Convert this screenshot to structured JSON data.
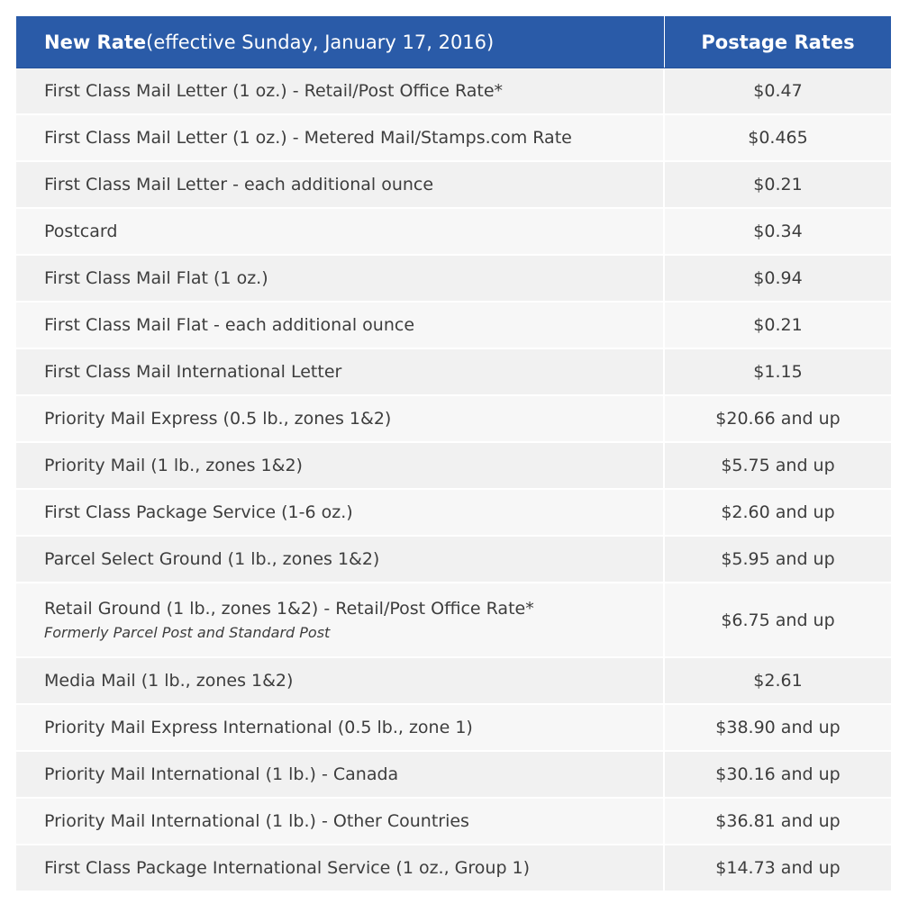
{
  "table": {
    "header": {
      "service_bold": "New Rate",
      "service_normal": " (effective Sunday, January 17, 2016)",
      "rate": "Postage Rates"
    },
    "rows": [
      {
        "service": "First Class Mail Letter (1 oz.) - Retail/Post Office Rate*",
        "rate": "$0.47"
      },
      {
        "service": "First Class Mail Letter (1 oz.) - Metered Mail/Stamps.com Rate",
        "rate": "$0.465"
      },
      {
        "service": "First Class Mail Letter - each additional ounce",
        "rate": "$0.21"
      },
      {
        "service": "Postcard",
        "rate": "$0.34"
      },
      {
        "service": "First Class Mail Flat (1 oz.)",
        "rate": "$0.94"
      },
      {
        "service": "First Class Mail Flat - each additional ounce",
        "rate": "$0.21"
      },
      {
        "service": "First Class Mail International Letter",
        "rate": "$1.15"
      },
      {
        "service": "Priority Mail Express (0.5 lb., zones 1&2)",
        "rate": "$20.66 and up"
      },
      {
        "service": "Priority Mail (1 lb., zones 1&2)",
        "rate": "$5.75 and up"
      },
      {
        "service": "First Class Package Service (1-6 oz.)",
        "rate": "$2.60 and up"
      },
      {
        "service": "Parcel Select Ground (1 lb., zones 1&2)",
        "rate": "$5.95 and up"
      },
      {
        "service": "Retail Ground (1 lb., zones 1&2) - Retail/Post Office Rate*",
        "note": "Formerly Parcel Post and Standard Post",
        "rate": "$6.75 and up"
      },
      {
        "service": "Media Mail (1 lb., zones 1&2)",
        "rate": "$2.61"
      },
      {
        "service": "Priority Mail Express International (0.5 lb., zone 1)",
        "rate": "$38.90 and up"
      },
      {
        "service": "Priority Mail International (1 lb.) - Canada",
        "rate": "$30.16 and up"
      },
      {
        "service": "Priority Mail International (1 lb.) - Other Countries",
        "rate": "$36.81 and up"
      },
      {
        "service": "First Class Package International Service (1 oz., Group 1)",
        "rate": "$14.73 and up"
      }
    ]
  },
  "colors": {
    "header_background": "#2a5ba8",
    "header_text": "#ffffff",
    "row_odd": "#f1f1f1",
    "row_even": "#f7f7f7",
    "body_text": "#3d3d3d"
  }
}
